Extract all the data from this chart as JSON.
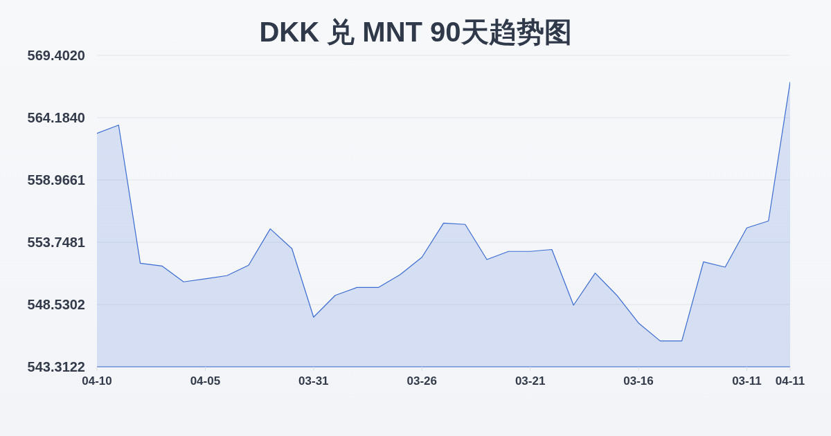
{
  "chart_data": {
    "type": "area",
    "title": "DKK 兑 MNT 90天趋势图",
    "categories": [
      "04-10",
      null,
      null,
      null,
      null,
      "04-05",
      null,
      null,
      null,
      null,
      "03-31",
      null,
      null,
      null,
      null,
      "03-26",
      null,
      null,
      null,
      null,
      "03-21",
      null,
      null,
      null,
      null,
      "03-16",
      null,
      null,
      null,
      null,
      "03-11",
      null,
      "04-11"
    ],
    "values": [
      562.87,
      563.56,
      551.99,
      551.76,
      550.43,
      550.68,
      550.95,
      551.82,
      554.87,
      553.21,
      547.47,
      549.3,
      549.96,
      549.96,
      551.04,
      552.49,
      555.35,
      555.24,
      552.3,
      552.98,
      552.98,
      553.14,
      548.47,
      551.16,
      549.3,
      546.98,
      545.48,
      545.48,
      552.11,
      551.66,
      554.95,
      555.53,
      567.18
    ],
    "color": "#3a6bd1",
    "ylim": [
      543.3122,
      569.402
    ],
    "yticks": [
      543.3122,
      548.5302,
      553.7481,
      558.9661,
      {
        "value": 564.184,
        "label": "564.1840"
      },
      {
        "value": 569.402,
        "label": "569.4020"
      }
    ],
    "grid": "y",
    "marker": "none"
  }
}
